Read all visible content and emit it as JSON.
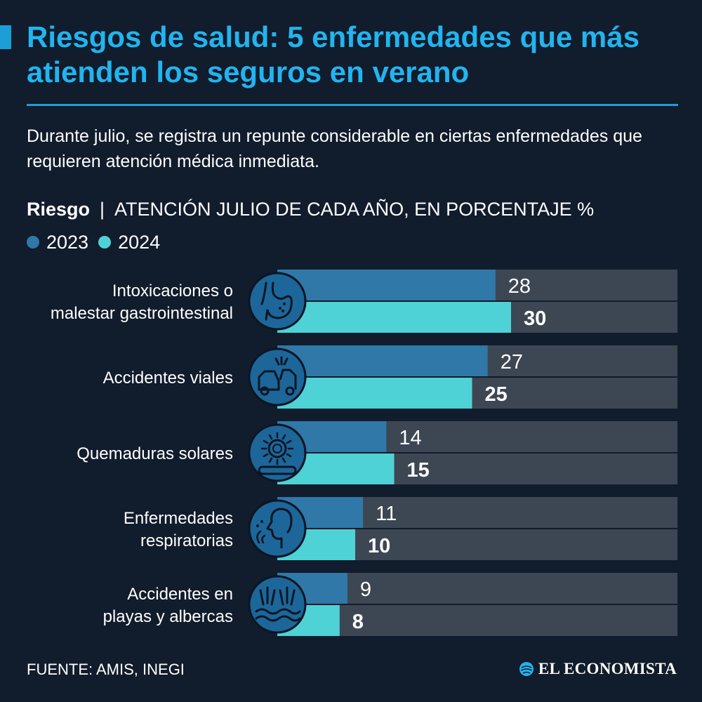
{
  "title": "Riesgos de salud: 5 enfermedades que más atienden los seguros en verano",
  "subtitle": "Durante julio, se registra un repunte considerable en ciertas enfermedades que requieren atención médica inmediata.",
  "header": {
    "label": "Riesgo",
    "separator": "|",
    "unit": "ATENCIÓN JULIO DE CADA AÑO, EN PORCENTAJE %"
  },
  "footer": {
    "source": "FUENTE: AMIS, INEGI",
    "brand": "EL ECONOMISTA"
  },
  "colors": {
    "background": "#111c2c",
    "title": "#22b4ee",
    "series_2023": "#2f78a8",
    "series_2024": "#4fd2d6",
    "track": "#3d4753",
    "icon_circle": "#1d6699"
  },
  "chart_data": {
    "type": "bar",
    "orientation": "horizontal",
    "categories": [
      "Intoxicaciones o malestar gastrointestinal",
      "Accidentes viales",
      "Quemaduras solares",
      "Enfermedades respiratorias",
      "Accidentes en playas y albercas"
    ],
    "category_icons": [
      "stomach-icon",
      "car-crash-icon",
      "sun-icon",
      "respiratory-icon",
      "drowning-icon"
    ],
    "series": [
      {
        "name": "2023",
        "values": [
          28,
          27,
          14,
          11,
          9
        ]
      },
      {
        "name": "2024",
        "values": [
          30,
          25,
          15,
          10,
          8
        ]
      }
    ],
    "xlabel": "",
    "ylabel": "",
    "xlim": [
      0,
      50
    ],
    "grid": false,
    "legend_position": "top-left"
  }
}
